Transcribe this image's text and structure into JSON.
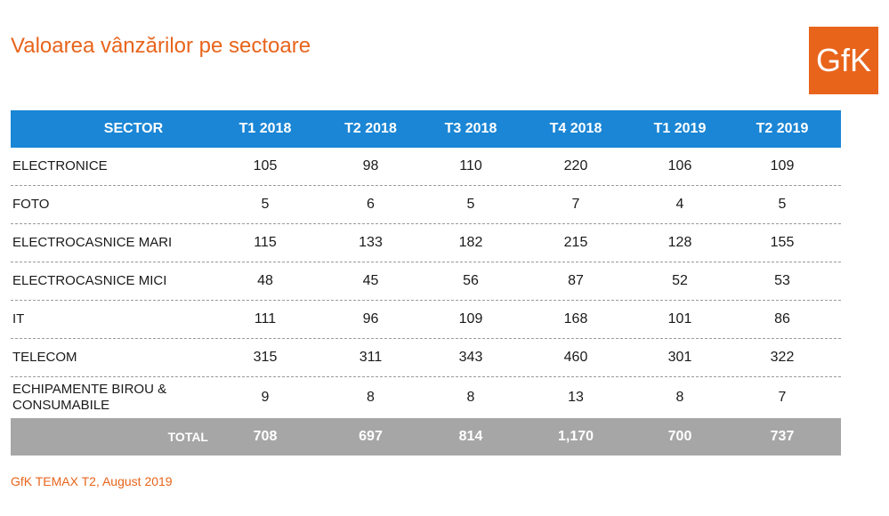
{
  "title": "Valoarea vânzărilor pe sectoare",
  "logo_text": "GfK",
  "table": {
    "headers": [
      "SECTOR",
      "T1 2018",
      "T2 2018",
      "T3 2018",
      "T4 2018",
      "T1 2019",
      "T2 2019"
    ],
    "rows": [
      {
        "sector": "ELECTRONICE",
        "values": [
          "105",
          "98",
          "110",
          "220",
          "106",
          "109"
        ]
      },
      {
        "sector": "FOTO",
        "values": [
          "5",
          "6",
          "5",
          "7",
          "4",
          "5"
        ]
      },
      {
        "sector": "ELECTROCASNICE MARI",
        "values": [
          "115",
          "133",
          "182",
          "215",
          "128",
          "155"
        ]
      },
      {
        "sector": "ELECTROCASNICE MICI",
        "values": [
          "48",
          "45",
          "56",
          "87",
          "52",
          "53"
        ]
      },
      {
        "sector": "IT",
        "values": [
          "111",
          "96",
          "109",
          "168",
          "101",
          "86"
        ]
      },
      {
        "sector": "TELECOM",
        "values": [
          "315",
          "311",
          "343",
          "460",
          "301",
          "322"
        ]
      },
      {
        "sector": "ECHIPAMENTE BIROU & CONSUMABILE",
        "sector_line1": "ECHIPAMENTE BIROU &",
        "sector_line2": "CONSUMABILE",
        "values": [
          "9",
          "8",
          "8",
          "13",
          "8",
          "7"
        ]
      }
    ],
    "total": {
      "label": "TOTAL",
      "values": [
        "708",
        "697",
        "814",
        "1,170",
        "700",
        "737"
      ]
    }
  },
  "source": "GfK TEMAX T2, August 2019",
  "colors": {
    "accent": "#e8641b",
    "header_bg": "#1b86d5",
    "total_bg": "#a6a6a6"
  }
}
